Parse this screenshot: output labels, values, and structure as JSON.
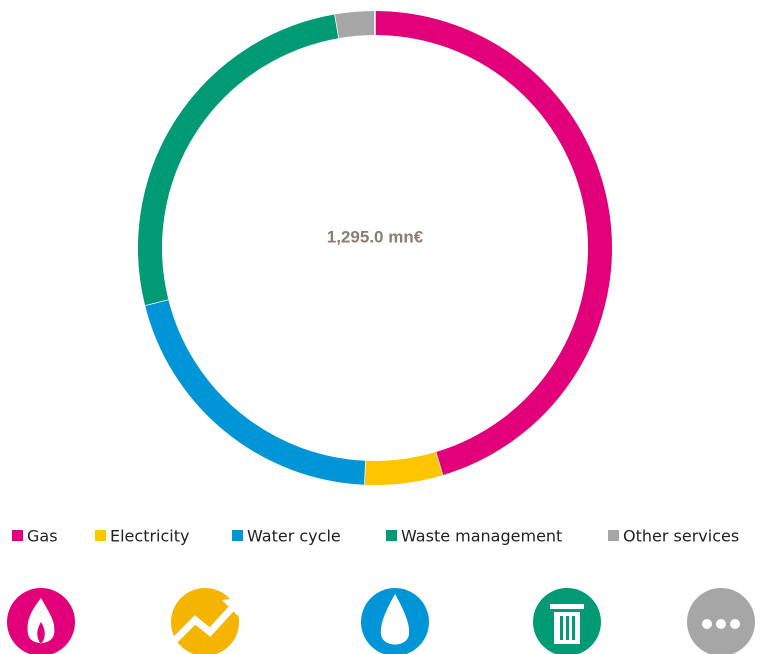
{
  "chart_data": {
    "type": "donut",
    "center_label": "1,295.0 mn€",
    "categories": [
      "Gas",
      "Electricity",
      "Water cycle",
      "Waste management",
      "Other services"
    ],
    "values": [
      588,
      69,
      264,
      339,
      35
    ],
    "colors": [
      "#e2007a",
      "#ffc600",
      "#0095d6",
      "#009a74",
      "#a6a6a6"
    ]
  }
}
